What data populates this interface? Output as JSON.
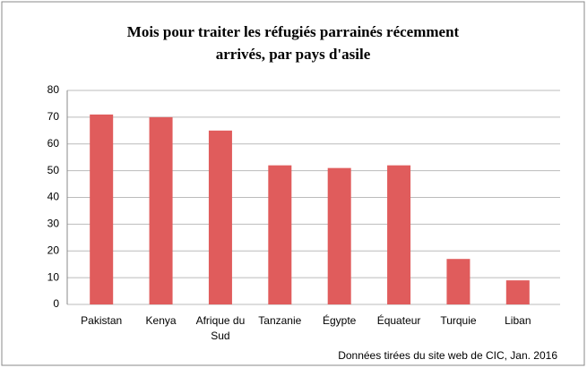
{
  "chart_data": {
    "type": "bar",
    "title": [
      "Mois pour traiter les réfugiés parrainés récemment",
      "arrivés, par pays d'asile"
    ],
    "categories": [
      "Pakistan",
      "Kenya",
      "Afrique du Sud",
      "Tanzanie",
      "Égypte",
      "Équateur",
      "Turquie",
      "Liban"
    ],
    "values": [
      71,
      70,
      65,
      52,
      51,
      52,
      17,
      9
    ],
    "color": "#e05c5c",
    "ylim": [
      0,
      80
    ],
    "yticks": [
      0,
      10,
      20,
      30,
      40,
      50,
      60,
      70,
      80
    ],
    "grid": true,
    "source": "Données tirées du site web de CIC, Jan. 2016"
  }
}
